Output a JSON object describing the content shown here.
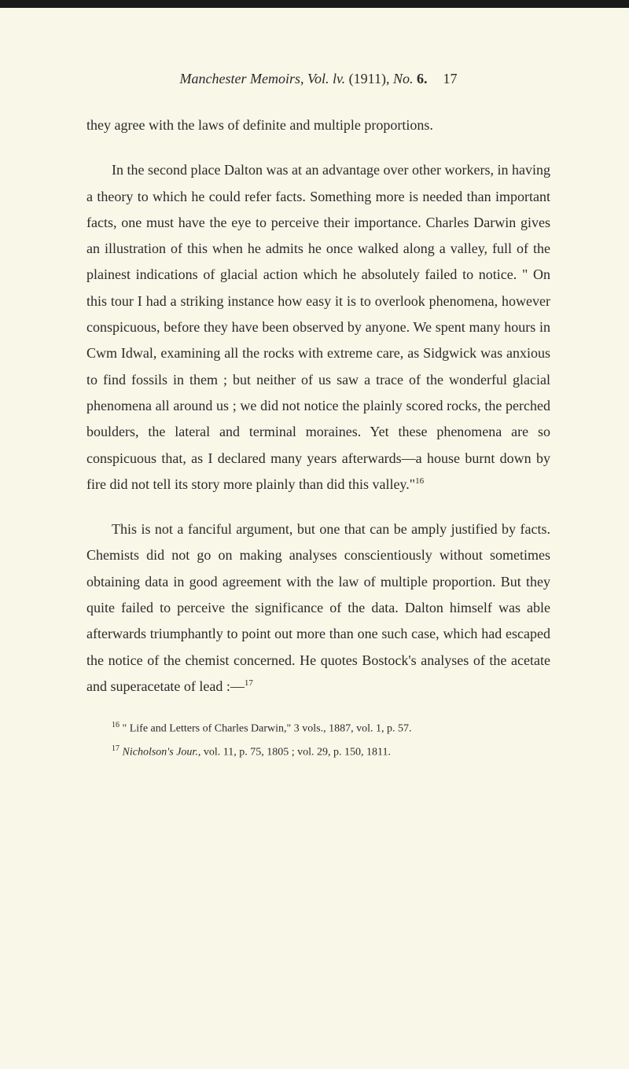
{
  "header": {
    "journal_title": "Manchester Memoirs",
    "volume": "Vol. lv.",
    "year": "(1911),",
    "issue": "No.",
    "issue_number": "6.",
    "page_number": "17"
  },
  "paragraphs": {
    "p1": "they agree with the laws of definite and multiple proportions.",
    "p2_part1": "In the second place Dalton was at an advantage over other workers, in having a theory to which he could refer facts. Something more is needed than important facts, one must have the eye to perceive their importance. Charles Darwin gives an illustration of this when he admits he once walked along a valley, full of the plainest indications of glacial action which he absolutely failed to notice. \" On this tour I had a striking instance how easy it is to overlook phenomena, however conspicuous, before they have been observed by anyone. We spent many hours in Cwm Idwal, examining all the rocks with extreme care, as Sidgwick was anxious to find fossils in them ; but neither of us saw a trace of the wonderful glacial phenomena all around us ; we did not notice the plainly scored rocks, the perched boulders, the lateral and terminal moraines. Yet these phenomena are so conspicuous that, as I declared many years afterwards—a house burnt down by fire did not tell its story more plainly than did this valley.\"",
    "p2_sup": "16",
    "p3_part1": "This is not a fanciful argument, but one that can be amply justified by facts. Chemists did not go on making analyses conscientiously without sometimes obtaining data in good agreement with the law of multiple proportion. But they quite failed to perceive the significance of the data. Dalton himself was able afterwards triumphantly to point out more than one such case, which had escaped the notice of the chemist concerned. He quotes Bostock's analyses of the acetate and superacetate of lead :—",
    "p3_sup": "17"
  },
  "footnotes": {
    "fn1_sup": "16",
    "fn1_text": " \" Life and Letters of Charles Darwin,\" 3 vols., 1887, vol. 1, p. 57.",
    "fn2_sup": "17",
    "fn2_italic": " Nicholson's Jour.",
    "fn2_text": ", vol. 11, p. 75, 1805 ; vol. 29, p. 150, 1811."
  },
  "colors": {
    "background": "#f8f7e8",
    "text": "#2a2a2a",
    "top_border": "#1a1a1a"
  },
  "typography": {
    "body_fontsize": 18,
    "footnote_fontsize": 14,
    "line_height": 1.85,
    "font_family": "Georgia, Times New Roman, serif"
  }
}
